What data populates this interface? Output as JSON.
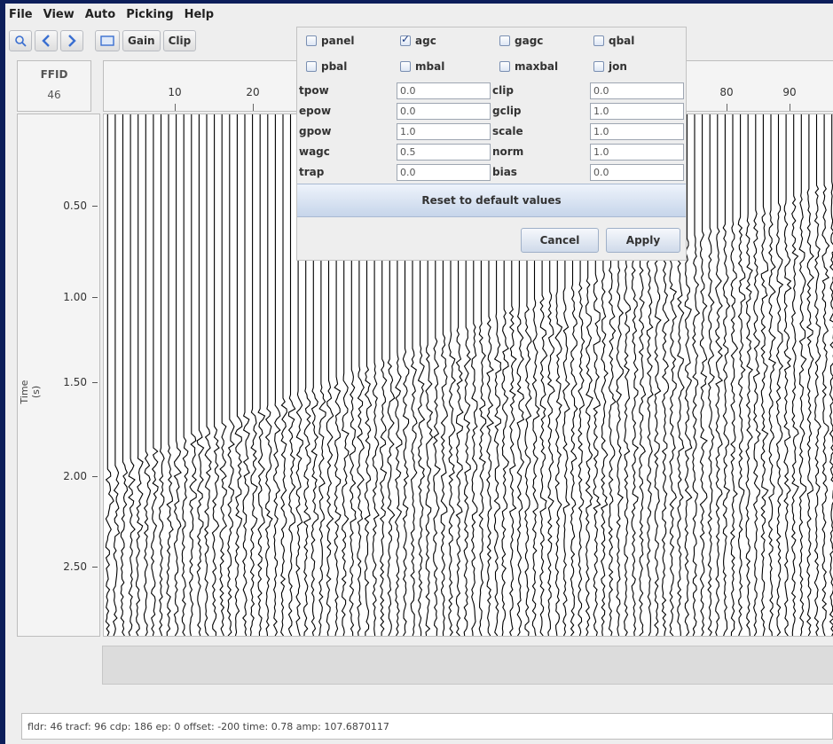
{
  "menu": [
    "File",
    "View",
    "Auto",
    "Picking",
    "Help"
  ],
  "toolbar": {
    "icons": [
      "zoom-icon",
      "arrow-left-icon",
      "arrow-right-icon",
      "display-icon"
    ],
    "gain_label": "Gain",
    "clip_label": "Clip"
  },
  "ffid": {
    "label": "FFID",
    "value": "46"
  },
  "axes": {
    "x_ticks": [
      "10",
      "20",
      "80",
      "90"
    ],
    "y_label": "Time (s)",
    "y_ticks": [
      "0.50",
      "1.00",
      "1.50",
      "2.00",
      "2.50"
    ]
  },
  "status": "fldr: 46 tracf: 96 cdp: 186 ep: 0 offset: -200  time: 0.78  amp: 107.6870117",
  "popup": {
    "checkboxes": [
      {
        "label": "panel",
        "checked": false
      },
      {
        "label": "agc",
        "checked": true
      },
      {
        "label": "gagc",
        "checked": false
      },
      {
        "label": "qbal",
        "checked": false
      },
      {
        "label": "pbal",
        "checked": false
      },
      {
        "label": "mbal",
        "checked": false
      },
      {
        "label": "maxbal",
        "checked": false
      },
      {
        "label": "jon",
        "checked": false
      }
    ],
    "params": [
      {
        "label": "tpow",
        "value": "0.0",
        "label2": "clip",
        "value2": "0.0"
      },
      {
        "label": "epow",
        "value": "0.0",
        "label2": "gclip",
        "value2": "1.0"
      },
      {
        "label": "gpow",
        "value": "1.0",
        "label2": "scale",
        "value2": "1.0"
      },
      {
        "label": "wagc",
        "value": "0.5",
        "label2": "norm",
        "value2": "1.0"
      },
      {
        "label": "trap",
        "value": "0.0",
        "label2": "bias",
        "value2": "0.0"
      }
    ],
    "reset_label": "Reset to default values",
    "cancel_label": "Cancel",
    "apply_label": "Apply"
  },
  "colors": {
    "desktop": "#0c1e5a",
    "window": "#eeeeee",
    "trace": "#000000"
  }
}
